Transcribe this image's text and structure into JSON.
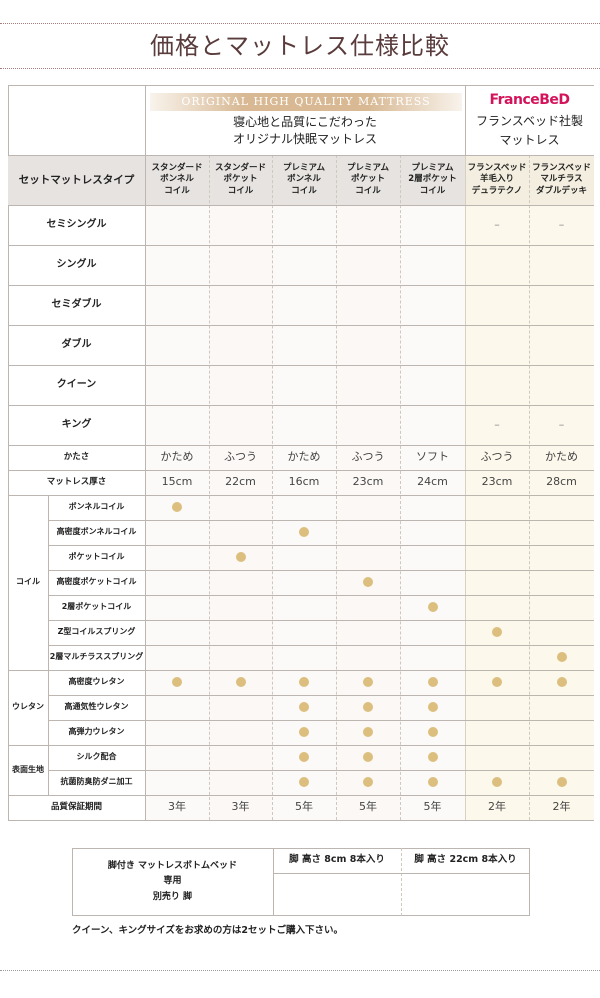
{
  "title": "価格とマットレス仕様比較",
  "header": {
    "original_band": "ORIGINAL HIGH QUALITY MATTRESS",
    "original_sub": [
      "寝心地と品質にこだわった",
      "オリジナル快眠マットレス"
    ],
    "francebed_logo": "FranceBeD",
    "francebed_sub": [
      "フランスベッド社製",
      "マットレス"
    ],
    "type_label": "セットマットレスタイプ"
  },
  "columns": [
    [
      "スタンダード",
      "ボンネル",
      "コイル"
    ],
    [
      "スタンダード",
      "ポケット",
      "コイル"
    ],
    [
      "プレミアム",
      "ボンネル",
      "コイル"
    ],
    [
      "プレミアム",
      "ポケット",
      "コイル"
    ],
    [
      "プレミアム",
      "2層ポケット",
      "コイル"
    ],
    [
      "フランスベッド",
      "羊毛入り",
      "デュラテクノ"
    ],
    [
      "フランスベッド",
      "マルチラス",
      "ダブルデッキ"
    ]
  ],
  "sizes": [
    {
      "label": "セミシングル",
      "cells": [
        "",
        "",
        "",
        "",
        "",
        "–",
        "–"
      ]
    },
    {
      "label": "シングル",
      "cells": [
        "",
        "",
        "",
        "",
        "",
        "",
        ""
      ]
    },
    {
      "label": "セミダブル",
      "cells": [
        "",
        "",
        "",
        "",
        "",
        "",
        ""
      ]
    },
    {
      "label": "ダブル",
      "cells": [
        "",
        "",
        "",
        "",
        "",
        "",
        ""
      ]
    },
    {
      "label": "クイーン",
      "cells": [
        "",
        "",
        "",
        "",
        "",
        "",
        ""
      ]
    },
    {
      "label": "キング",
      "cells": [
        "",
        "",
        "",
        "",
        "",
        "–",
        "–"
      ]
    }
  ],
  "firmness": {
    "label": "かたさ",
    "values": [
      "かため",
      "ふつう",
      "かため",
      "ふつう",
      "ソフト",
      "ふつう",
      "かため"
    ]
  },
  "thickness": {
    "label": "マットレス厚さ",
    "values": [
      "15cm",
      "22cm",
      "16cm",
      "23cm",
      "24cm",
      "23cm",
      "28cm"
    ]
  },
  "features": [
    {
      "group": "コイル",
      "items": [
        {
          "label": "ボンネルコイル",
          "marks": [
            1,
            0,
            0,
            0,
            0,
            0,
            0
          ]
        },
        {
          "label": "高密度ボンネルコイル",
          "marks": [
            0,
            0,
            1,
            0,
            0,
            0,
            0
          ]
        },
        {
          "label": "ポケットコイル",
          "marks": [
            0,
            1,
            0,
            0,
            0,
            0,
            0
          ]
        },
        {
          "label": "高密度ポケットコイル",
          "marks": [
            0,
            0,
            0,
            1,
            0,
            0,
            0
          ]
        },
        {
          "label": "2層ポケットコイル",
          "marks": [
            0,
            0,
            0,
            0,
            1,
            0,
            0
          ]
        },
        {
          "label": "Z型コイルスプリング",
          "marks": [
            0,
            0,
            0,
            0,
            0,
            1,
            0
          ]
        },
        {
          "label": "2層マルチラススプリング",
          "marks": [
            0,
            0,
            0,
            0,
            0,
            0,
            1
          ]
        }
      ]
    },
    {
      "group": "ウレタン",
      "items": [
        {
          "label": "高密度ウレタン",
          "marks": [
            1,
            1,
            1,
            1,
            1,
            1,
            1
          ]
        },
        {
          "label": "高通気性ウレタン",
          "marks": [
            0,
            0,
            1,
            1,
            1,
            0,
            0
          ]
        },
        {
          "label": "高弾力ウレタン",
          "marks": [
            0,
            0,
            1,
            1,
            1,
            0,
            0
          ]
        }
      ]
    },
    {
      "group": "表面生地",
      "items": [
        {
          "label": "シルク配合",
          "marks": [
            0,
            0,
            1,
            1,
            1,
            0,
            0
          ]
        },
        {
          "label": "抗菌防臭防ダニ加工",
          "marks": [
            0,
            0,
            1,
            1,
            1,
            1,
            1
          ]
        }
      ]
    }
  ],
  "warranty": {
    "label": "品質保証期間",
    "values": [
      "3年",
      "3年",
      "5年",
      "5年",
      "5年",
      "2年",
      "2年"
    ]
  },
  "legs": {
    "label": [
      "脚付き マットレスボトムベッド",
      "専用",
      "別売り 脚"
    ],
    "options": [
      "脚 高さ 8cm 8本入り",
      "脚 高さ 22cm 8本入り"
    ]
  },
  "note": "クイーン、キングサイズをお求めの方は2セットご購入下さい。",
  "colors": {
    "dot": "#dcbf7e",
    "header_bg": "#e6e3e0",
    "francebed_bg": "#fdf8ec",
    "title": "#5a3c3c",
    "logo": "#d4145a"
  }
}
